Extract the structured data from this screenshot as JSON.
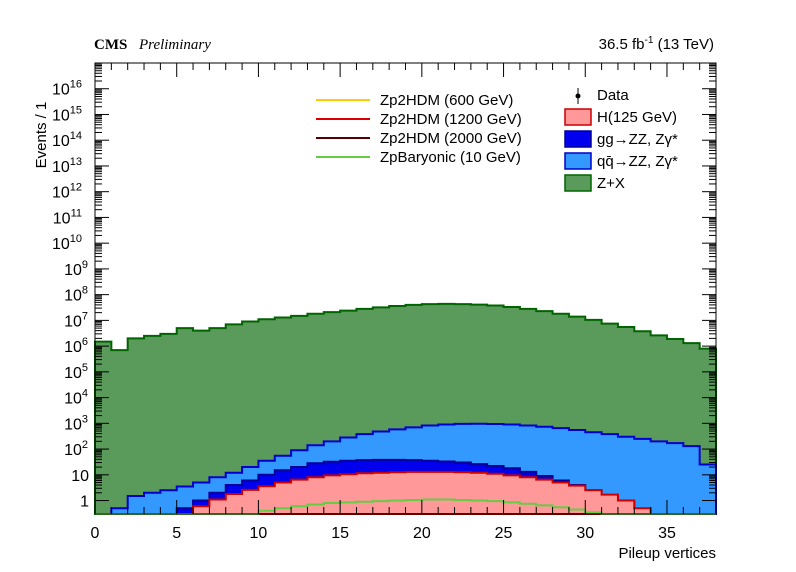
{
  "header": {
    "experiment": "CMS",
    "status": "Preliminary",
    "lumi_value": "36.5 fb",
    "lumi_exp": "-1",
    "energy": " (13 TeV)"
  },
  "chart_data": {
    "type": "area",
    "stacked": true,
    "log_y": true,
    "xlabel": "Pileup vertices",
    "ylabel": "Events / 1",
    "xlim": [
      0,
      38
    ],
    "ylim": [
      0.3,
      1e+17
    ],
    "bin_width": 1,
    "x_ticks": [
      "0",
      "5",
      "10",
      "15",
      "20",
      "25",
      "30",
      "35"
    ],
    "y_ticks": [
      {
        "base": "1",
        "exp": ""
      },
      {
        "base": "10",
        "exp": ""
      },
      {
        "base": "10",
        "exp": "2"
      },
      {
        "base": "10",
        "exp": "3"
      },
      {
        "base": "10",
        "exp": "4"
      },
      {
        "base": "10",
        "exp": "5"
      },
      {
        "base": "10",
        "exp": "6"
      },
      {
        "base": "10",
        "exp": "7"
      },
      {
        "base": "10",
        "exp": "8"
      },
      {
        "base": "10",
        "exp": "9"
      },
      {
        "base": "10",
        "exp": "10"
      },
      {
        "base": "10",
        "exp": "11"
      },
      {
        "base": "10",
        "exp": "12"
      },
      {
        "base": "10",
        "exp": "13"
      },
      {
        "base": "10",
        "exp": "14"
      },
      {
        "base": "10",
        "exp": "15"
      },
      {
        "base": "10",
        "exp": "16"
      }
    ],
    "stack_totals": [
      {
        "name": "Z+X",
        "color": "#5a9a5a",
        "edge": "#006400",
        "values": [
          1500000.0,
          700000.0,
          2000000.0,
          2500000.0,
          3000000.0,
          5000000.0,
          4000000.0,
          5000000.0,
          7000000.0,
          9000000.0,
          11000000.0,
          13000000.0,
          15000000.0,
          18000000.0,
          21000000.0,
          24000000.0,
          28000000.0,
          32000000.0,
          36000000.0,
          40000000.0,
          43000000.0,
          44000000.0,
          43000000.0,
          41000000.0,
          38000000.0,
          33000000.0,
          28000000.0,
          23000000.0,
          18000000.0,
          14000000.0,
          10500000.0,
          7500000.0,
          5500000.0,
          3800000.0,
          2600000.0,
          1900000.0,
          1300000.0,
          800000.0
        ]
      },
      {
        "name": "qq̄→ZZ, Zγ*",
        "color": "#3399ff",
        "edge": "#0000cc",
        "values": [
          0.1,
          0.5,
          1.5,
          2,
          2.5,
          3.5,
          5,
          8,
          12,
          20,
          35,
          55,
          90,
          140,
          200,
          280,
          380,
          480,
          580,
          700,
          820,
          900,
          950,
          960,
          940,
          900,
          820,
          740,
          650,
          550,
          450,
          380,
          300,
          250,
          200,
          170,
          130,
          25
        ]
      },
      {
        "name": "gg→ZZ, Zγ*",
        "color": "#0000ee",
        "edge": "#000099",
        "values": [
          0.1,
          0.1,
          0.1,
          0.1,
          0.1,
          0.5,
          1,
          2,
          4,
          6,
          10,
          15,
          20,
          28,
          32,
          35,
          37,
          38,
          38,
          37,
          35,
          33,
          30,
          26,
          22,
          18,
          13,
          9,
          6,
          4,
          2.5,
          1.5,
          0.8,
          0.4,
          0.1,
          0.1,
          0.1,
          0.1
        ]
      },
      {
        "name": "H(125 GeV)",
        "color": "#ff9999",
        "edge": "#cc0000",
        "values": [
          0.1,
          0.1,
          0.1,
          0.1,
          0.1,
          0.3,
          0.6,
          1.1,
          1.8,
          2.6,
          3.6,
          5,
          6.5,
          8,
          9.5,
          10.5,
          11.5,
          12,
          12.5,
          13,
          13,
          13,
          12.5,
          12,
          11,
          9.5,
          8,
          6.5,
          5,
          3.8,
          2.5,
          1.7,
          1,
          0.5,
          0.2,
          0.1,
          0.1,
          0.1
        ]
      }
    ],
    "signal_lines": [
      {
        "name": "Zp2HDM (600 GeV)",
        "color": "#ffcc00",
        "values": []
      },
      {
        "name": "Zp2HDM (1200 GeV)",
        "color": "#dd0000",
        "values": []
      },
      {
        "name": "Zp2HDM (2000 GeV)",
        "color": "#550000",
        "values": []
      },
      {
        "name": "ZpBaryonic (10 GeV)",
        "color": "#66cc44",
        "values": [
          0.05,
          0.05,
          0.05,
          0.05,
          0.05,
          0.05,
          0.05,
          0.05,
          0.05,
          0.3,
          0.4,
          0.5,
          0.6,
          0.7,
          0.8,
          0.85,
          0.9,
          0.95,
          1.0,
          1.05,
          1.1,
          1.1,
          1.05,
          1.0,
          0.95,
          0.85,
          0.75,
          0.65,
          0.55,
          0.45,
          0.35,
          0.05,
          0.05,
          0.05,
          0.05,
          0.05,
          0.05,
          0.05
        ]
      }
    ],
    "legend_left": [
      "Zp2HDM (600 GeV)",
      "Zp2HDM (1200 GeV)",
      "Zp2HDM (2000 GeV)",
      "ZpBaryonic (10 GeV)"
    ],
    "legend_right": [
      "Data",
      "H(125 GeV)",
      "gg→ZZ, Zγ*",
      "qq̄→ZZ, Zγ*",
      "Z+X"
    ],
    "legend_placement": "top-right",
    "grid": false
  }
}
